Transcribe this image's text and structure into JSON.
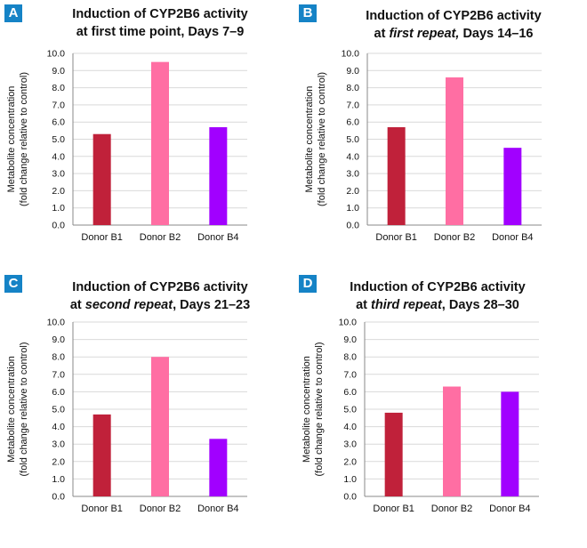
{
  "colors": {
    "badge": "#1583c6",
    "donor_b1": "#c0213a",
    "donor_b2": "#ff6ea3",
    "donor_b4": "#a100ff"
  },
  "panels": [
    {
      "label": "A",
      "title_line1": "Induction of CYP2B6 activity",
      "title_line2_pre": "at first time point, Days 7–9",
      "title_line2_em": "",
      "title_line2_post": ""
    },
    {
      "label": "B",
      "title_line1": "Induction of CYP2B6 activity",
      "title_line2_pre": "at ",
      "title_line2_em": "first repeat,",
      "title_line2_post": " Days 14–16"
    },
    {
      "label": "C",
      "title_line1": "Induction of CYP2B6 activity",
      "title_line2_pre": "at ",
      "title_line2_em": "second repeat",
      "title_line2_post": ", Days 21–23"
    },
    {
      "label": "D",
      "title_line1": "Induction of CYP2B6 activity",
      "title_line2_pre": "at ",
      "title_line2_em": "third repeat",
      "title_line2_post": ", Days 28–30"
    }
  ],
  "chart_data": [
    {
      "type": "bar",
      "title": "Induction of CYP2B6 activity at first time point, Days 7–9",
      "categories": [
        "Donor B1",
        "Donor B2",
        "Donor B4"
      ],
      "values": [
        5.3,
        9.5,
        5.7
      ],
      "colors": [
        "#c0213a",
        "#ff6ea3",
        "#a100ff"
      ],
      "ylabel_line1": "Metabolite concentration",
      "ylabel_line2": "(fold change relative to control)",
      "ylim": [
        0,
        10
      ],
      "yticks": [
        "0.0",
        "1.0",
        "2.0",
        "3.0",
        "4.0",
        "5.0",
        "6.0",
        "7.0",
        "8.0",
        "9.0",
        "10.0"
      ],
      "grid": true
    },
    {
      "type": "bar",
      "title": "Induction of CYP2B6 activity at first repeat, Days 14–16",
      "categories": [
        "Donor B1",
        "Donor B2",
        "Donor B4"
      ],
      "values": [
        5.7,
        8.6,
        4.5
      ],
      "colors": [
        "#c0213a",
        "#ff6ea3",
        "#a100ff"
      ],
      "ylabel_line1": "Metabolite concentration",
      "ylabel_line2": "(fold change relative to control)",
      "ylim": [
        0,
        10
      ],
      "yticks": [
        "0.0",
        "1.0",
        "2.0",
        "3.0",
        "4.0",
        "5.0",
        "6.0",
        "7.0",
        "8.0",
        "9.0",
        "10.0"
      ],
      "grid": true
    },
    {
      "type": "bar",
      "title": "Induction of CYP2B6 activity at second repeat, Days 21–23",
      "categories": [
        "Donor B1",
        "Donor B2",
        "Donor B4"
      ],
      "values": [
        4.7,
        8.0,
        3.3
      ],
      "colors": [
        "#c0213a",
        "#ff6ea3",
        "#a100ff"
      ],
      "ylabel_line1": "Metabolite concentration",
      "ylabel_line2": "(fold change relative to control)",
      "ylim": [
        0,
        10
      ],
      "yticks": [
        "0.0",
        "1.0",
        "2.0",
        "3.0",
        "4.0",
        "5.0",
        "6.0",
        "7.0",
        "8.0",
        "9.0",
        "10.0"
      ],
      "grid": true
    },
    {
      "type": "bar",
      "title": "Induction of CYP2B6 activity at third repeat, Days 28–30",
      "categories": [
        "Donor B1",
        "Donor B2",
        "Donor B4"
      ],
      "values": [
        4.8,
        6.3,
        6.0
      ],
      "colors": [
        "#c0213a",
        "#ff6ea3",
        "#a100ff"
      ],
      "ylabel_line1": "Metabolite concentration",
      "ylabel_line2": "(fold change relative to control)",
      "ylim": [
        0,
        10
      ],
      "yticks": [
        "0.0",
        "1.0",
        "2.0",
        "3.0",
        "4.0",
        "5.0",
        "6.0",
        "7.0",
        "8.0",
        "9.0",
        "10.0"
      ],
      "grid": true
    }
  ]
}
